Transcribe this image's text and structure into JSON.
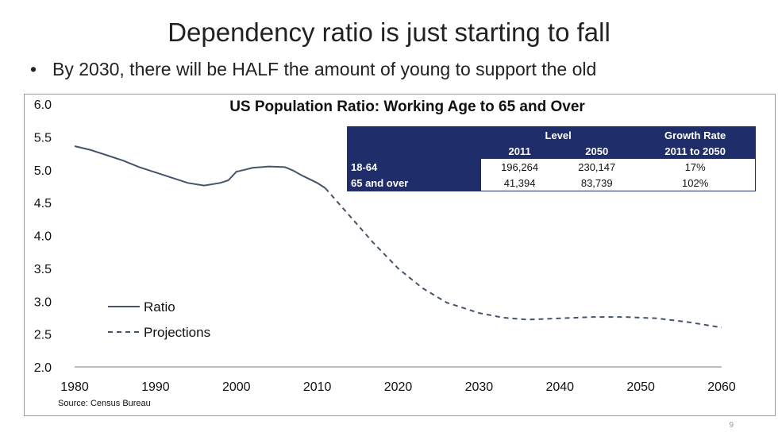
{
  "slide": {
    "title": "Dependency ratio is just starting to fall",
    "bullet": "By 2030, there will be HALF the amount of young to support the old",
    "page_number": "9"
  },
  "table": {
    "header_level": "Level",
    "header_growth": "Growth Rate",
    "col_2011": "2011",
    "col_2050": "2050",
    "col_growth": "2011 to 2050",
    "rows": [
      {
        "label": "18-64",
        "v2011": "196,264",
        "v2050": "230,147",
        "growth": "17%"
      },
      {
        "label": "65 and over",
        "v2011": "41,394",
        "v2050": "83,739",
        "growth": "102%"
      }
    ]
  },
  "chart_data": {
    "type": "line",
    "title": "US Population Ratio: Working Age to 65 and Over",
    "source": "Source: Census Bureau",
    "xlim": [
      1980,
      2060
    ],
    "ylim": [
      2.0,
      6.0
    ],
    "x_ticks": [
      "1980",
      "1990",
      "2000",
      "2010",
      "2020",
      "2030",
      "2040",
      "2050",
      "2060"
    ],
    "y_ticks": [
      "2.0",
      "2.5",
      "3.0",
      "3.5",
      "4.0",
      "4.5",
      "5.0",
      "5.5",
      "6.0"
    ],
    "grid": false,
    "legend_position": "bottom-left",
    "series": [
      {
        "name": "Ratio",
        "style": "solid",
        "color": "#44546a",
        "x": [
          1980,
          1982,
          1984,
          1986,
          1988,
          1990,
          1992,
          1994,
          1996,
          1998,
          1999,
          2000,
          2001,
          2002,
          2004,
          2006,
          2007,
          2008,
          2009,
          2010,
          2011
        ],
        "y": [
          5.36,
          5.3,
          5.22,
          5.14,
          5.04,
          4.96,
          4.88,
          4.8,
          4.76,
          4.8,
          4.84,
          4.97,
          5.0,
          5.03,
          5.05,
          5.04,
          4.99,
          4.92,
          4.86,
          4.8,
          4.72
        ]
      },
      {
        "name": "Projections",
        "style": "dashed",
        "color": "#44546a",
        "x": [
          2011,
          2014,
          2017,
          2020,
          2023,
          2026,
          2030,
          2033,
          2036,
          2040,
          2044,
          2048,
          2052,
          2056,
          2060
        ],
        "y": [
          4.72,
          4.3,
          3.88,
          3.5,
          3.2,
          2.98,
          2.82,
          2.75,
          2.72,
          2.74,
          2.76,
          2.76,
          2.74,
          2.68,
          2.6
        ]
      }
    ]
  }
}
